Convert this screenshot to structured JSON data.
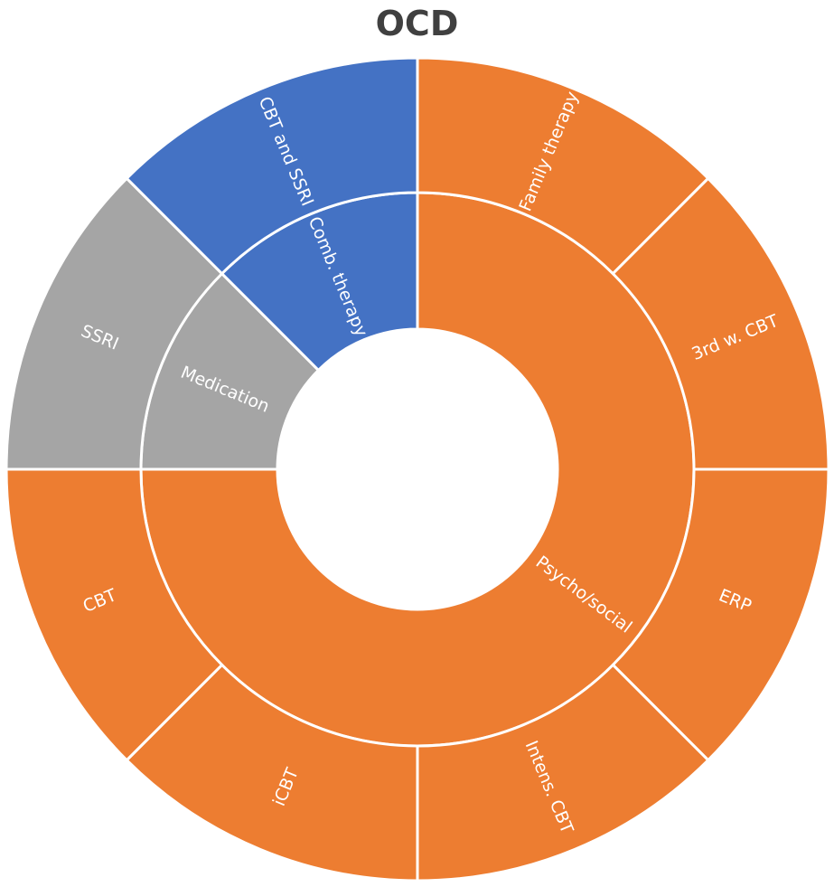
{
  "chart_data": {
    "type": "sunburst",
    "title": "OCD",
    "colors": {
      "psycho_social": "#ED7D31",
      "medication": "#A5A5A5",
      "combination": "#4472C4"
    },
    "groups": [
      {
        "name": "Psycho/social",
        "color": "#ED7D31",
        "children": [
          {
            "name": "Family therapy",
            "value": 1
          },
          {
            "name": "3rd w. CBT",
            "value": 1
          },
          {
            "name": "ERP",
            "value": 1
          },
          {
            "name": "Intens. CBT",
            "value": 1
          },
          {
            "name": "iCBT",
            "value": 1
          },
          {
            "name": "CBT",
            "value": 1
          }
        ]
      },
      {
        "name": "Medication",
        "color": "#A5A5A5",
        "children": [
          {
            "name": "SSRI",
            "value": 1
          }
        ]
      },
      {
        "name": "Comb. therapy",
        "color": "#4472C4",
        "children": [
          {
            "name": "CBT and SSRI",
            "value": 1
          }
        ]
      }
    ]
  }
}
